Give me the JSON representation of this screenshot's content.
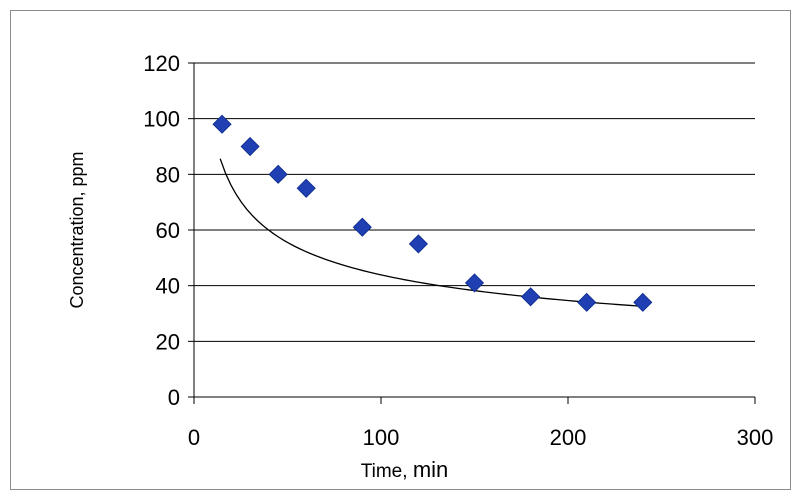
{
  "chart_data": {
    "type": "scatter",
    "xlabel_parts": [
      "Time, ",
      "min"
    ],
    "ylabel": "Concentration, ppm",
    "xlim": [
      0,
      300
    ],
    "ylim": [
      0,
      120
    ],
    "xticks": [
      0,
      100,
      200,
      300
    ],
    "yticks": [
      0,
      20,
      40,
      60,
      80,
      100,
      120
    ],
    "xtick_labels": [
      "0",
      "100",
      "200",
      "300"
    ],
    "ytick_labels": [
      "0",
      "20",
      "40",
      "60",
      "80",
      "100",
      "120"
    ],
    "grid": "horizontal",
    "legend": "none",
    "marker": "diamond",
    "colors": {
      "points": "#1f3fb3",
      "points_stroke": "#0a2a8a",
      "trend": "#000000",
      "grid": "#000000"
    },
    "series": [
      {
        "x": [
          15,
          30,
          45,
          60,
          90,
          120,
          150,
          180,
          210,
          240
        ],
        "y": [
          98,
          90,
          80,
          75,
          61,
          55,
          41,
          36,
          34,
          34
        ]
      }
    ],
    "trendline": {
      "type": "power",
      "coefficient": 210,
      "exponent": -0.34,
      "x_range": [
        14,
        240
      ]
    }
  }
}
